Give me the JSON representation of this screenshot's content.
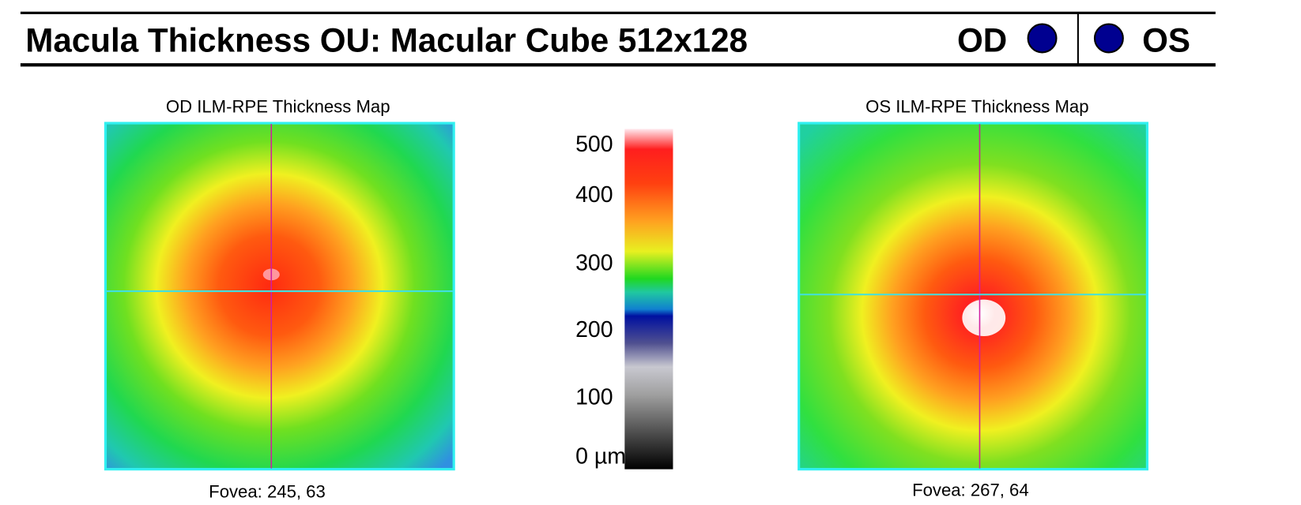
{
  "header": {
    "title": "Macula Thickness OU: Macular Cube 512x128",
    "od": "OD",
    "os": "OS"
  },
  "od_map": {
    "title": "OD ILM-RPE Thickness Map",
    "fovea": "Fovea: 245, 63"
  },
  "os_map": {
    "title": "OS ILM-RPE Thickness Map",
    "fovea": "Fovea: 267, 64"
  },
  "color_scale": {
    "labels": [
      "500",
      "400",
      "300",
      "200",
      "100",
      "0 µm"
    ]
  }
}
